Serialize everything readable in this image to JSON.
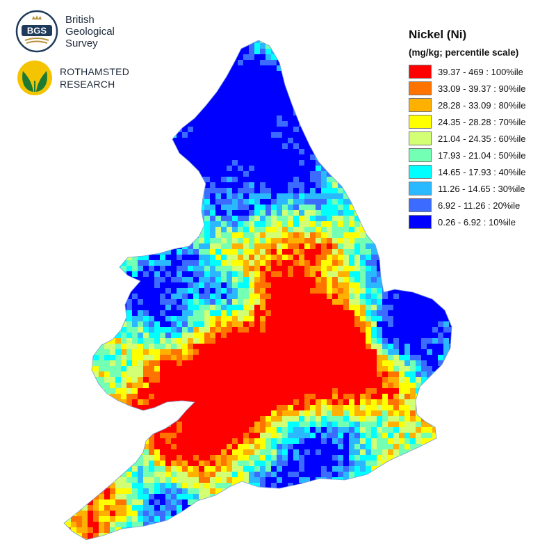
{
  "logos": {
    "bgs": {
      "mark_text": "BGS",
      "lines": [
        "British",
        "Geological",
        "Survey"
      ]
    },
    "rothamsted": {
      "lines": [
        "ROTHAMSTED",
        "RESEARCH"
      ]
    }
  },
  "legend": {
    "title": "Nickel (Ni)",
    "subtitle": "(mg/kg; percentile scale)",
    "classes": [
      {
        "label": "39.37 - 469 : 100%ile",
        "color": "#ff0000"
      },
      {
        "label": "33.09 - 39.37 : 90%ile",
        "color": "#ff7300"
      },
      {
        "label": "28.28 - 33.09 : 80%ile",
        "color": "#ffb000"
      },
      {
        "label": "24.35 - 28.28 : 70%ile",
        "color": "#ffff00"
      },
      {
        "label": "21.04 - 24.35 : 60%ile",
        "color": "#d2ff73"
      },
      {
        "label": "17.93 - 21.04 : 50%ile",
        "color": "#73ffb4"
      },
      {
        "label": "14.65 - 17.93 : 40%ile",
        "color": "#00ffff"
      },
      {
        "label": "11.26 - 14.65 : 30%ile",
        "color": "#2ab8ff"
      },
      {
        "label": "6.92 - 11.26 : 20%ile",
        "color": "#3c6cff"
      },
      {
        "label": "0.26 - 6.92 : 10%ile",
        "color": "#0000ff"
      }
    ]
  },
  "map": {
    "region": "England and Wales",
    "element": "Nickel (Ni)"
  }
}
